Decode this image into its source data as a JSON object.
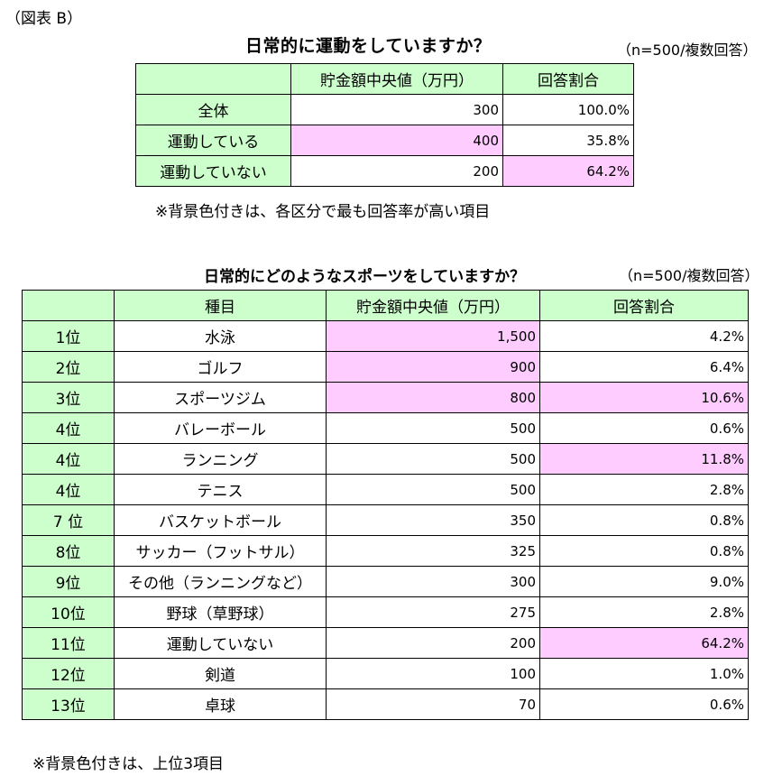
{
  "figure_label": "（図表 B）",
  "table1": {
    "title": "日常的に運動をしていますか？",
    "sample": "（n=500/複数回答）",
    "headers": [
      "",
      "貯金額中央値（万円）",
      "回答割合"
    ],
    "rows": [
      {
        "label": "全体",
        "median": "300",
        "ratio": "100.0%",
        "highlight_median": false,
        "highlight_ratio": false
      },
      {
        "label": "運動している",
        "median": "400",
        "ratio": "35.8%",
        "highlight_median": true,
        "highlight_ratio": false
      },
      {
        "label": "運動していない",
        "median": "200",
        "ratio": "64.2%",
        "highlight_median": false,
        "highlight_ratio": true
      }
    ],
    "note": "※背景色付きは、各区分で最も回答率が高い項目"
  },
  "table2": {
    "title": "日常的にどのようなスポーツをしていますか？",
    "sample": "（n=500/複数回答）",
    "headers": [
      "",
      "種目",
      "貯金額中央値（万円）",
      "回答割合"
    ],
    "rows": [
      {
        "rank": "1位",
        "item": "水泳",
        "median": "1,500",
        "ratio": "4.2%",
        "highlight_median": true,
        "highlight_ratio": false
      },
      {
        "rank": "2位",
        "item": "ゴルフ",
        "median": "900",
        "ratio": "6.4%",
        "highlight_median": true,
        "highlight_ratio": false
      },
      {
        "rank": "3位",
        "item": "スポーツジム",
        "median": "800",
        "ratio": "10.6%",
        "highlight_median": true,
        "highlight_ratio": true
      },
      {
        "rank": "4位",
        "item": "バレーボール",
        "median": "500",
        "ratio": "0.6%",
        "highlight_median": false,
        "highlight_ratio": false
      },
      {
        "rank": "4位",
        "item": "ランニング",
        "median": "500",
        "ratio": "11.8%",
        "highlight_median": false,
        "highlight_ratio": true
      },
      {
        "rank": "4位",
        "item": "テニス",
        "median": "500",
        "ratio": "2.8%",
        "highlight_median": false,
        "highlight_ratio": false
      },
      {
        "rank": "7 位",
        "item": "バスケットボール",
        "median": "350",
        "ratio": "0.8%",
        "highlight_median": false,
        "highlight_ratio": false
      },
      {
        "rank": "8位",
        "item": "サッカー（フットサル）",
        "median": "325",
        "ratio": "0.8%",
        "highlight_median": false,
        "highlight_ratio": false
      },
      {
        "rank": "9位",
        "item": "その他（ランニングなど）",
        "median": "300",
        "ratio": "9.0%",
        "highlight_median": false,
        "highlight_ratio": false
      },
      {
        "rank": "10位",
        "item": "野球（草野球）",
        "median": "275",
        "ratio": "2.8%",
        "highlight_median": false,
        "highlight_ratio": false
      },
      {
        "rank": "11位",
        "item": "運動していない",
        "median": "200",
        "ratio": "64.2%",
        "highlight_median": false,
        "highlight_ratio": true
      },
      {
        "rank": "12位",
        "item": "剣道",
        "median": "100",
        "ratio": "1.0%",
        "highlight_median": false,
        "highlight_ratio": false
      },
      {
        "rank": "13位",
        "item": "卓球",
        "median": "70",
        "ratio": "0.6%",
        "highlight_median": false,
        "highlight_ratio": false
      }
    ],
    "note": "※背景色付きは、上位3項目"
  },
  "colors": {
    "header_green": "#ccffcc",
    "highlight_pink": "#ffccff",
    "border": "#000000"
  }
}
